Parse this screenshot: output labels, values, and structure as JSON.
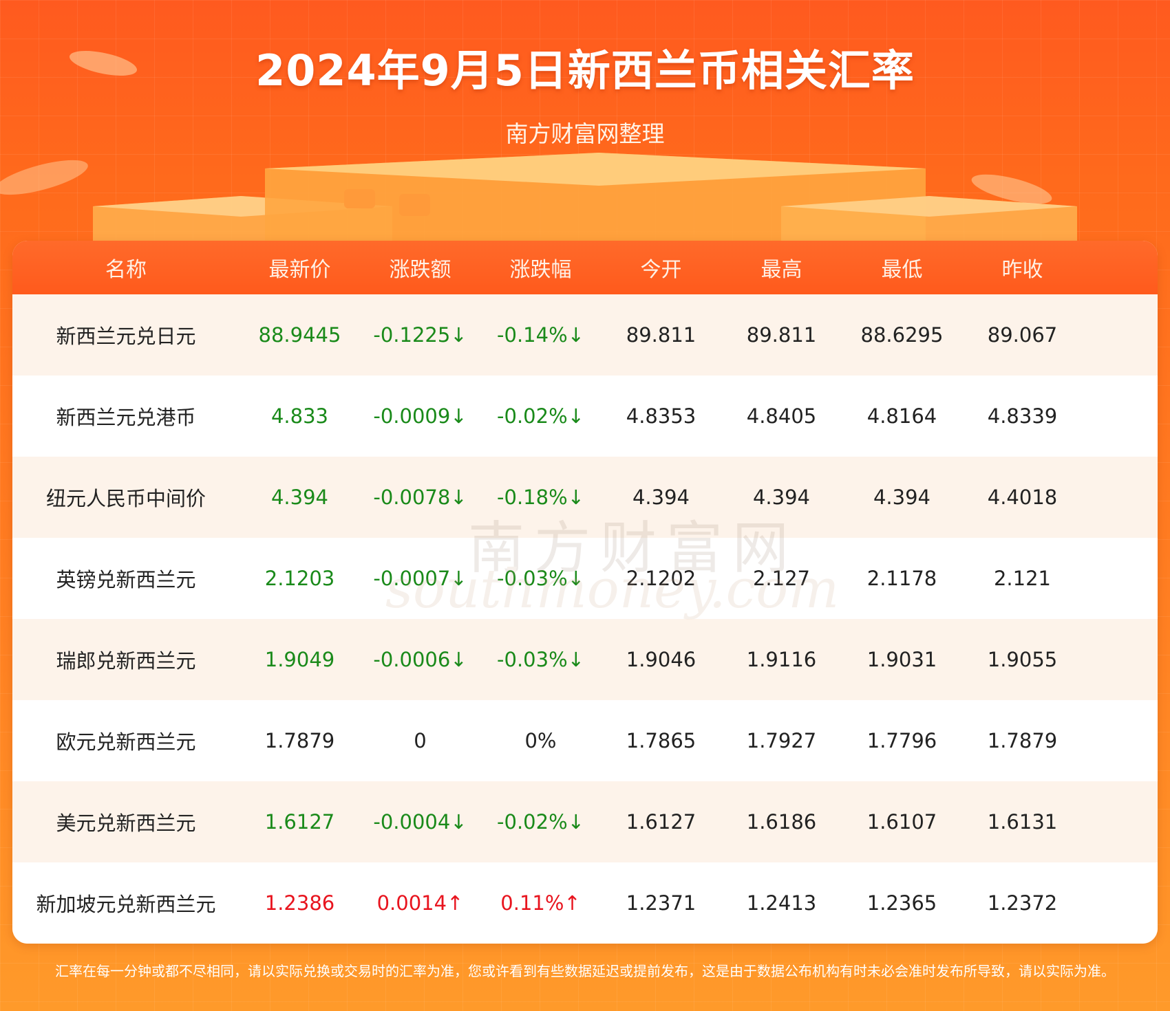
{
  "page": {
    "title": "2024年9月5日新西兰币相关汇率",
    "subtitle": "南方财富网整理",
    "footer": "汇率在每一分钟或都不尽相同，请以实际兑换或交易时的汇率为准，您或许看到有些数据延迟或提前发布，这是由于数据公布机构有时未必会准时发布所导致，请以实际为准。"
  },
  "table": {
    "headers": [
      "名称",
      "最新价",
      "涨跌额",
      "涨跌幅",
      "今开",
      "最高",
      "最低",
      "昨收"
    ],
    "rows": [
      {
        "name": "新西兰元兑日元",
        "latest": "88.9445",
        "change": "-0.1225↓",
        "pct": "-0.14%↓",
        "open": "89.811",
        "high": "89.811",
        "low": "88.6295",
        "prev": "89.067",
        "trend": "down"
      },
      {
        "name": "新西兰元兑港币",
        "latest": "4.833",
        "change": "-0.0009↓",
        "pct": "-0.02%↓",
        "open": "4.8353",
        "high": "4.8405",
        "low": "4.8164",
        "prev": "4.8339",
        "trend": "down"
      },
      {
        "name": "纽元人民币中间价",
        "latest": "4.394",
        "change": "-0.0078↓",
        "pct": "-0.18%↓",
        "open": "4.394",
        "high": "4.394",
        "low": "4.394",
        "prev": "4.4018",
        "trend": "down"
      },
      {
        "name": "英镑兑新西兰元",
        "latest": "2.1203",
        "change": "-0.0007↓",
        "pct": "-0.03%↓",
        "open": "2.1202",
        "high": "2.127",
        "low": "2.1178",
        "prev": "2.121",
        "trend": "down"
      },
      {
        "name": "瑞郎兑新西兰元",
        "latest": "1.9049",
        "change": "-0.0006↓",
        "pct": "-0.03%↓",
        "open": "1.9046",
        "high": "1.9116",
        "low": "1.9031",
        "prev": "1.9055",
        "trend": "down"
      },
      {
        "name": "欧元兑新西兰元",
        "latest": "1.7879",
        "change": "0",
        "pct": "0%",
        "open": "1.7865",
        "high": "1.7927",
        "low": "1.7796",
        "prev": "1.7879",
        "trend": "flat"
      },
      {
        "name": "美元兑新西兰元",
        "latest": "1.6127",
        "change": "-0.0004↓",
        "pct": "-0.02%↓",
        "open": "1.6127",
        "high": "1.6186",
        "low": "1.6107",
        "prev": "1.6131",
        "trend": "down"
      },
      {
        "name": "新加坡元兑新西兰元",
        "latest": "1.2386",
        "change": "0.0014↑",
        "pct": "0.11%↑",
        "open": "1.2371",
        "high": "1.2413",
        "low": "1.2365",
        "prev": "1.2372",
        "trend": "up"
      }
    ]
  },
  "watermark": {
    "cn": "南方财富网",
    "en": "southmoney.com"
  },
  "colors": {
    "down": "#1a8a1a",
    "up": "#e8141e",
    "flat": "#222222",
    "accent": "#ff5a1c"
  }
}
